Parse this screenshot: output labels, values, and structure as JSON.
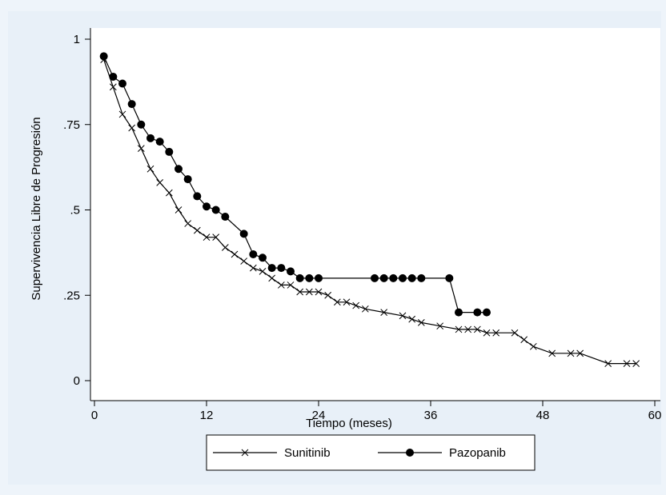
{
  "chart_data": {
    "type": "line",
    "xlabel": "Tiempo (meses)",
    "ylabel": "Supervivencia Libre de Progresión",
    "xlim": [
      0,
      60
    ],
    "ylim": [
      0,
      1
    ],
    "x_ticks": [
      "0",
      "12",
      "24",
      "36",
      "48",
      "60"
    ],
    "x_tick_values": [
      0,
      12,
      24,
      36,
      48,
      60
    ],
    "y_ticks": [
      "0",
      ".25",
      ".5",
      ".75",
      "1"
    ],
    "y_tick_values": [
      0,
      0.25,
      0.5,
      0.75,
      1
    ],
    "grid": false,
    "legend_position": "bottom",
    "series": [
      {
        "name": "Sunitinib",
        "marker": "x",
        "color": "#000000",
        "x": [
          1,
          2,
          3,
          4,
          5,
          6,
          7,
          8,
          9,
          10,
          11,
          12,
          13,
          14,
          15,
          16,
          17,
          18,
          19,
          20,
          21,
          22,
          23,
          24,
          25,
          26,
          27,
          28,
          29,
          31,
          33,
          34,
          35,
          37,
          39,
          40,
          41,
          42,
          43,
          45,
          46,
          47,
          49,
          51,
          52,
          55,
          57,
          58
        ],
        "y": [
          0.94,
          0.86,
          0.78,
          0.74,
          0.68,
          0.62,
          0.58,
          0.55,
          0.5,
          0.46,
          0.44,
          0.42,
          0.42,
          0.39,
          0.37,
          0.35,
          0.33,
          0.32,
          0.3,
          0.28,
          0.28,
          0.26,
          0.26,
          0.26,
          0.25,
          0.23,
          0.23,
          0.22,
          0.21,
          0.2,
          0.19,
          0.18,
          0.17,
          0.16,
          0.15,
          0.15,
          0.15,
          0.14,
          0.14,
          0.14,
          0.12,
          0.1,
          0.08,
          0.08,
          0.08,
          0.05,
          0.05,
          0.05
        ]
      },
      {
        "name": "Pazopanib",
        "marker": "circle",
        "color": "#000000",
        "x": [
          1,
          2,
          3,
          4,
          5,
          6,
          7,
          8,
          9,
          10,
          11,
          12,
          13,
          14,
          16,
          17,
          18,
          19,
          20,
          21,
          22,
          23,
          24,
          30,
          31,
          32,
          33,
          34,
          35,
          38,
          39,
          41,
          42
        ],
        "y": [
          0.95,
          0.89,
          0.87,
          0.81,
          0.75,
          0.71,
          0.7,
          0.67,
          0.62,
          0.59,
          0.54,
          0.51,
          0.5,
          0.48,
          0.43,
          0.37,
          0.36,
          0.33,
          0.33,
          0.32,
          0.3,
          0.3,
          0.3,
          0.3,
          0.3,
          0.3,
          0.3,
          0.3,
          0.3,
          0.3,
          0.2,
          0.2,
          0.2
        ]
      }
    ]
  }
}
